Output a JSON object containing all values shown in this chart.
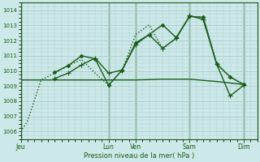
{
  "xlabel": "Pression niveau de la mer( hPa )",
  "ylim": [
    1005.5,
    1014.5
  ],
  "yticks": [
    1006,
    1007,
    1008,
    1009,
    1010,
    1011,
    1012,
    1013,
    1014
  ],
  "bg_color": "#cde8e8",
  "grid_color": "#aacccc",
  "line_color": "#1a5c1a",
  "day_labels": [
    "Jeu",
    "Lun",
    "Ven",
    "Sam",
    "Dim"
  ],
  "day_positions": [
    0,
    13,
    17,
    25,
    33
  ],
  "xlim": [
    0,
    35
  ],
  "lines": [
    {
      "x": [
        0,
        1,
        3,
        5,
        7,
        9,
        11,
        13,
        15,
        17,
        19,
        21,
        23,
        25,
        27,
        29,
        31,
        33
      ],
      "y": [
        1006.0,
        1006.7,
        1009.4,
        1009.85,
        1010.35,
        1010.75,
        1009.85,
        1009.05,
        1010.05,
        1012.4,
        1013.05,
        1011.45,
        1012.2,
        1013.6,
        1013.55,
        1010.5,
        1009.6,
        1009.1
      ],
      "style": "dotted",
      "marker": null,
      "lw": 1.0
    },
    {
      "x": [
        5,
        7,
        9,
        11,
        13,
        15,
        17,
        19,
        21,
        23,
        25,
        27,
        29,
        31,
        33
      ],
      "y": [
        1009.9,
        1010.35,
        1011.0,
        1010.8,
        1009.05,
        1010.05,
        1011.85,
        1012.4,
        1013.05,
        1012.2,
        1013.6,
        1013.55,
        1010.45,
        1009.6,
        1009.1
      ],
      "style": "solid",
      "marker": "D",
      "markersize": 2.2,
      "lw": 1.0
    },
    {
      "x": [
        5,
        7,
        9,
        11,
        13,
        15,
        17,
        19,
        21,
        23,
        25,
        27,
        29,
        31,
        33
      ],
      "y": [
        1009.5,
        1009.85,
        1010.4,
        1010.85,
        1009.85,
        1010.05,
        1011.75,
        1012.4,
        1011.5,
        1012.15,
        1013.65,
        1013.4,
        1010.45,
        1008.35,
        1009.05
      ],
      "style": "solid",
      "marker": "+",
      "markersize": 4,
      "lw": 1.0
    },
    {
      "x": [
        0,
        5,
        9,
        13,
        17,
        21,
        25,
        29,
        33
      ],
      "y": [
        1009.4,
        1009.4,
        1009.4,
        1009.4,
        1009.4,
        1009.45,
        1009.45,
        1009.3,
        1009.1
      ],
      "style": "solid",
      "marker": null,
      "lw": 1.0
    }
  ]
}
